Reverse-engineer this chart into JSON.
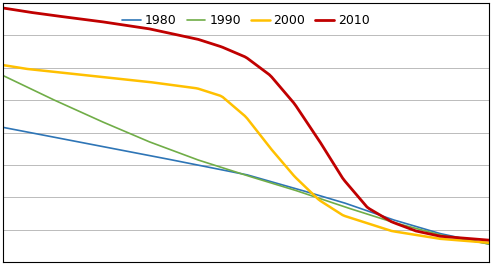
{
  "legend_labels": [
    "1980",
    "1990",
    "2000",
    "2010"
  ],
  "line_colors": {
    "1980": "#2E75B6",
    "1990": "#70AD47",
    "2000": "#FFC000",
    "2010": "#C00000"
  },
  "line_widths": {
    "1980": 1.2,
    "1990": 1.2,
    "2000": 1.8,
    "2010": 2.0
  },
  "background_color": "#FFFFFF",
  "grid_color": "#BBBBBB",
  "grid_linewidth": 0.7,
  "num_points": 200,
  "ylim": [
    0.0,
    1.0
  ],
  "xlim": [
    0.0,
    1.0
  ],
  "figsize": [
    4.92,
    2.65
  ],
  "dpi": 100,
  "series": {
    "1980": {
      "x": [
        0.0,
        0.1,
        0.2,
        0.3,
        0.4,
        0.5,
        0.6,
        0.7,
        0.8,
        0.9,
        1.0
      ],
      "y": [
        0.52,
        0.484,
        0.448,
        0.412,
        0.375,
        0.338,
        0.285,
        0.23,
        0.165,
        0.11,
        0.07
      ]
    },
    "1990": {
      "x": [
        0.0,
        0.1,
        0.2,
        0.3,
        0.4,
        0.5,
        0.6,
        0.7,
        0.8,
        0.9,
        1.0
      ],
      "y": [
        0.72,
        0.63,
        0.545,
        0.465,
        0.395,
        0.335,
        0.278,
        0.215,
        0.155,
        0.105,
        0.07
      ]
    },
    "2000": {
      "x": [
        0.0,
        0.05,
        0.1,
        0.2,
        0.3,
        0.4,
        0.45,
        0.5,
        0.55,
        0.6,
        0.65,
        0.7,
        0.8,
        0.9,
        1.0
      ],
      "y": [
        0.76,
        0.745,
        0.735,
        0.715,
        0.695,
        0.67,
        0.64,
        0.56,
        0.44,
        0.33,
        0.24,
        0.18,
        0.12,
        0.09,
        0.075
      ]
    },
    "2010": {
      "x": [
        0.0,
        0.05,
        0.1,
        0.2,
        0.3,
        0.4,
        0.45,
        0.5,
        0.55,
        0.6,
        0.65,
        0.7,
        0.75,
        0.8,
        0.85,
        0.9,
        1.0
      ],
      "y": [
        0.98,
        0.965,
        0.952,
        0.928,
        0.9,
        0.86,
        0.83,
        0.79,
        0.72,
        0.61,
        0.47,
        0.32,
        0.21,
        0.155,
        0.12,
        0.1,
        0.085
      ]
    }
  },
  "n_gridlines": 8,
  "legend_fontsize": 9,
  "frame_color": "#000000"
}
